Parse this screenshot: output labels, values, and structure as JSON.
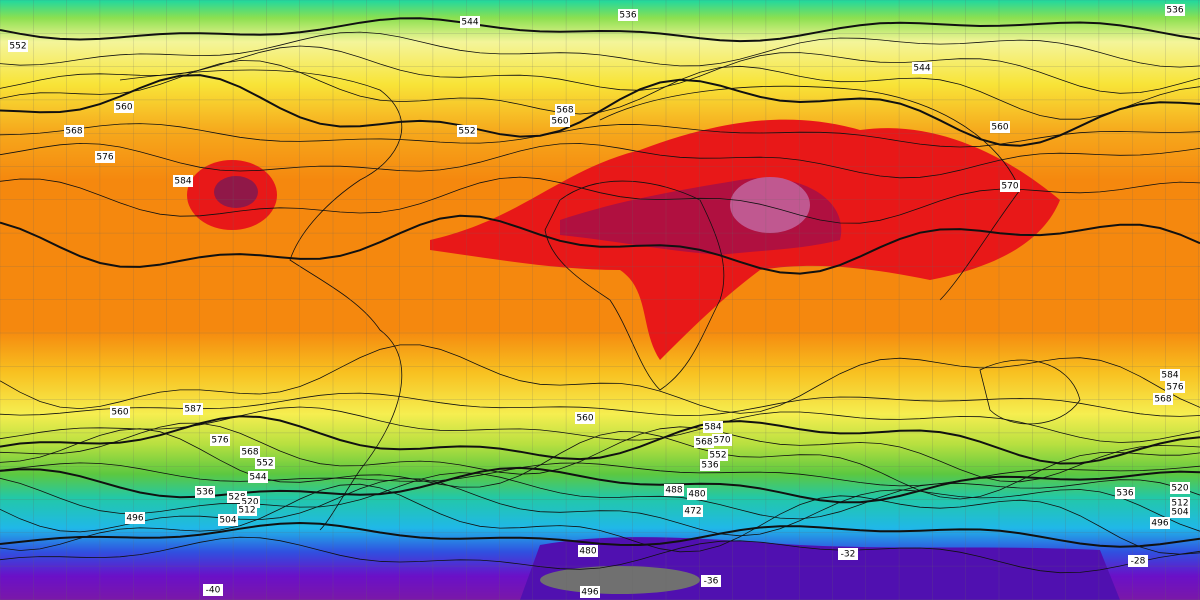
{
  "contour_labels": [
    536,
    544,
    536,
    552,
    560,
    568,
    576,
    584,
    552,
    560,
    568,
    544,
    560,
    570,
    584,
    576,
    568,
    587,
    560,
    576,
    568,
    552,
    544,
    536,
    528,
    520,
    512,
    504,
    496,
    560,
    584,
    570,
    568,
    552,
    536,
    488,
    480,
    472,
    480,
    496,
    536,
    520,
    512,
    504,
    496,
    -36,
    -32,
    -28,
    -40
  ]
}
